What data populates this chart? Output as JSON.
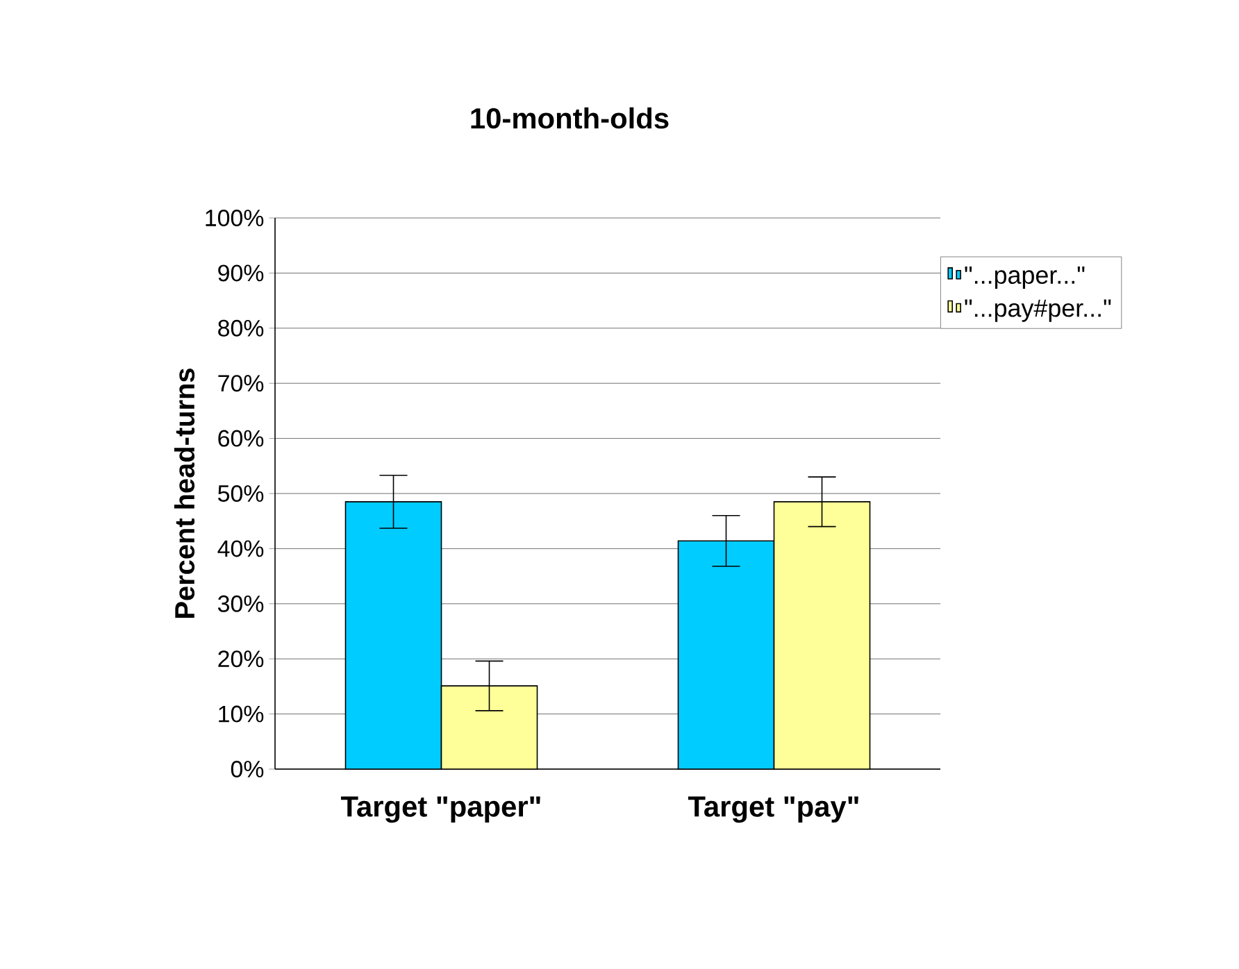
{
  "chart_data": {
    "type": "bar",
    "title": "10-month-olds",
    "ylabel": "Percent  head-turns",
    "categories": [
      "Target \"paper\"",
      "Target \"pay\""
    ],
    "series": [
      {
        "name": "\"...paper...\"",
        "color": "#00ccff",
        "values": [
          48.5,
          41.4
        ],
        "errors": [
          4.8,
          4.6
        ]
      },
      {
        "name": "\"...pay#per...\"",
        "color": "#ffff99",
        "values": [
          15.1,
          48.5
        ],
        "errors": [
          4.5,
          4.5
        ]
      }
    ],
    "ylim": [
      0,
      100
    ],
    "yticks": [
      {
        "value": 0,
        "label": "0%"
      },
      {
        "value": 10,
        "label": "10%"
      },
      {
        "value": 20,
        "label": "20%"
      },
      {
        "value": 30,
        "label": "30%"
      },
      {
        "value": 40,
        "label": "40%"
      },
      {
        "value": 50,
        "label": "50%"
      },
      {
        "value": 60,
        "label": "60%"
      },
      {
        "value": 70,
        "label": "70%"
      },
      {
        "value": 80,
        "label": "80%"
      },
      {
        "value": 90,
        "label": "90%"
      },
      {
        "value": 100,
        "label": "100%"
      }
    ],
    "grid": "y",
    "legend": "right"
  }
}
